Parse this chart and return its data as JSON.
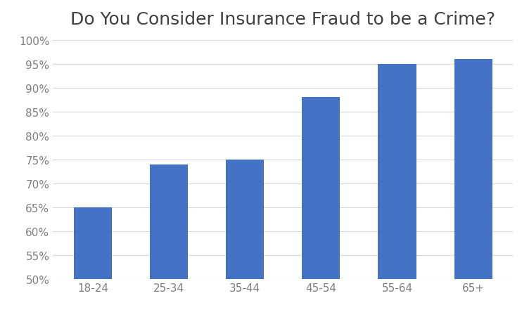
{
  "title": "Do You Consider Insurance Fraud to be a Crime?",
  "categories": [
    "18-24",
    "25-34",
    "35-44",
    "45-54",
    "55-64",
    "65+"
  ],
  "values": [
    0.65,
    0.74,
    0.75,
    0.88,
    0.95,
    0.96
  ],
  "bar_color": "#4472C4",
  "ylim": [
    0.5,
    1.005
  ],
  "yticks": [
    0.5,
    0.55,
    0.6,
    0.65,
    0.7,
    0.75,
    0.8,
    0.85,
    0.9,
    0.95,
    1.0
  ],
  "background_color": "#ffffff",
  "grid_color": "#d9d9d9",
  "title_fontsize": 18,
  "tick_fontsize": 11,
  "title_color": "#404040",
  "tick_color": "#808080"
}
